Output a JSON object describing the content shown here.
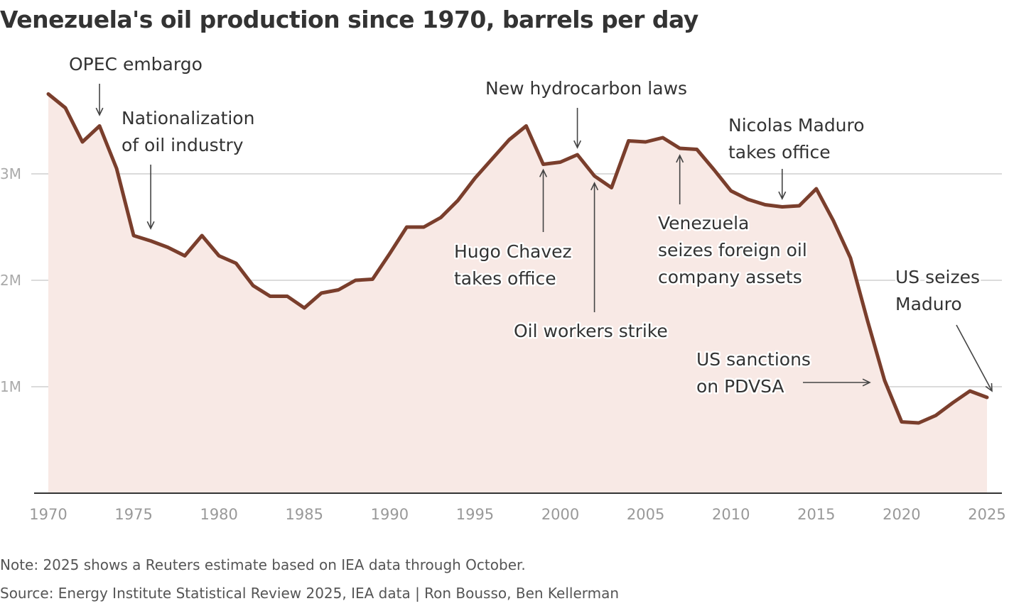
{
  "chart_data": {
    "type": "area",
    "title": "Venezuela's oil production since 1970, barrels per day",
    "xlabel": "",
    "ylabel": "",
    "xlim": [
      1970,
      2025
    ],
    "ylim": [
      0,
      4000000
    ],
    "grid": true,
    "x_ticks": [
      "1970",
      "1975",
      "1980",
      "1985",
      "1990",
      "1995",
      "2000",
      "2005",
      "2010",
      "2015",
      "2020",
      "2025"
    ],
    "y_ticks": [
      {
        "value": 1000000,
        "label": "1M"
      },
      {
        "value": 2000000,
        "label": "2M"
      },
      {
        "value": 3000000,
        "label": "3M"
      }
    ],
    "series": [
      {
        "name": "Oil production (barrels per day)",
        "color": "#7a3e2c",
        "fill": "#f8e9e5",
        "x": [
          1970,
          1971,
          1972,
          1973,
          1974,
          1975,
          1976,
          1977,
          1978,
          1979,
          1980,
          1981,
          1982,
          1983,
          1984,
          1985,
          1986,
          1987,
          1988,
          1989,
          1990,
          1991,
          1992,
          1993,
          1994,
          1995,
          1996,
          1997,
          1998,
          1999,
          2000,
          2001,
          2002,
          2003,
          2004,
          2005,
          2006,
          2007,
          2008,
          2009,
          2010,
          2011,
          2012,
          2013,
          2014,
          2015,
          2016,
          2017,
          2018,
          2019,
          2020,
          2021,
          2022,
          2023,
          2024,
          2025
        ],
        "values": [
          3750000,
          3620000,
          3300000,
          3450000,
          3050000,
          2420000,
          2370000,
          2310000,
          2230000,
          2420000,
          2230000,
          2160000,
          1950000,
          1850000,
          1850000,
          1740000,
          1880000,
          1910000,
          2000000,
          2010000,
          2250000,
          2500000,
          2500000,
          2590000,
          2750000,
          2960000,
          3140000,
          3320000,
          3450000,
          3090000,
          3110000,
          3180000,
          2980000,
          2870000,
          3310000,
          3300000,
          3340000,
          3240000,
          3230000,
          3040000,
          2840000,
          2760000,
          2710000,
          2690000,
          2700000,
          2860000,
          2560000,
          2210000,
          1620000,
          1060000,
          670000,
          660000,
          730000,
          850000,
          960000,
          900000
        ]
      }
    ],
    "annotations": [
      {
        "id": "opec",
        "lines": [
          "OPEC embargo"
        ],
        "year": 1973
      },
      {
        "id": "nationalization",
        "lines": [
          "Nationalization",
          "of oil industry"
        ],
        "year": 1976
      },
      {
        "id": "chavez",
        "lines": [
          "Hugo Chavez",
          "takes office"
        ],
        "year": 1999
      },
      {
        "id": "hydrocarbon",
        "lines": [
          "New hydrocarbon laws"
        ],
        "year": 2001
      },
      {
        "id": "strike",
        "lines": [
          "Oil workers strike"
        ],
        "year": 2002
      },
      {
        "id": "seizes",
        "lines": [
          "Venezuela",
          "seizes foreign oil",
          "company assets"
        ],
        "year": 2007
      },
      {
        "id": "maduro_office",
        "lines": [
          "Nicolas Maduro",
          "takes office"
        ],
        "year": 2013
      },
      {
        "id": "sanctions",
        "lines": [
          "US sanctions",
          "on PDVSA"
        ],
        "year": 2019
      },
      {
        "id": "seizes_maduro",
        "lines": [
          "US seizes",
          "Maduro"
        ],
        "year": 2025
      }
    ]
  },
  "footer": {
    "note": "Note: 2025 shows a Reuters estimate based on IEA data through October.",
    "source": "Source: Energy Institute Statistical Review 2025, IEA data | Ron Bousso, Ben Kellerman"
  }
}
